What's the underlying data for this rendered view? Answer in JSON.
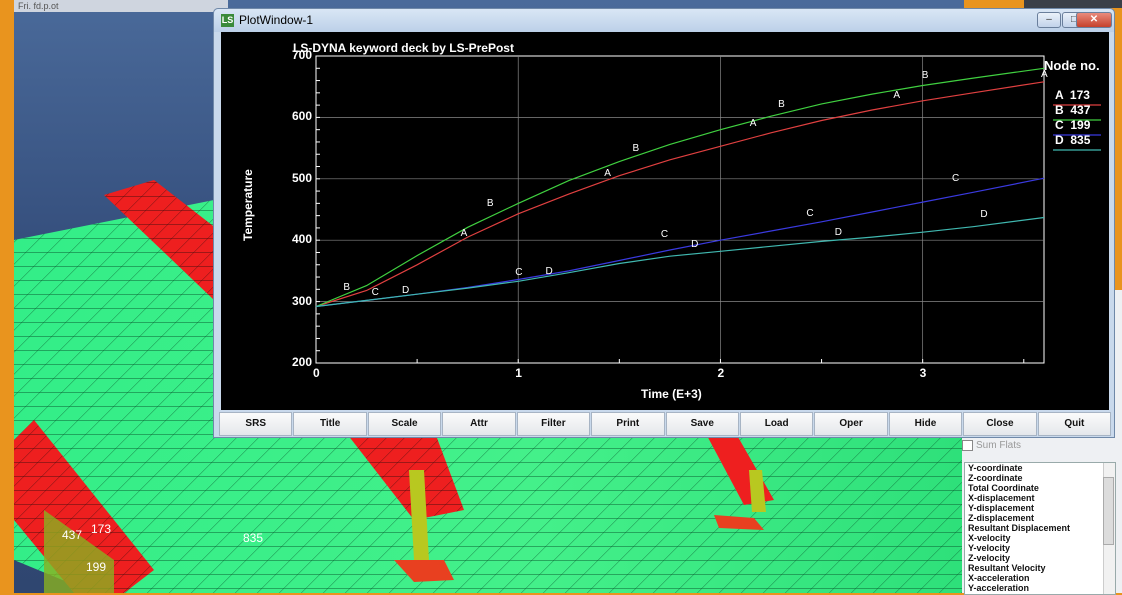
{
  "background_app": {
    "titlebar_text": "Fri. fd.p.ot",
    "node_labels": [
      "437",
      "173",
      "199",
      "835"
    ],
    "panel": {
      "sum_flats_label": "Sum Flats",
      "list_items": [
        "Y-coordinate",
        "Z-coordinate",
        "Total Coordinate",
        "X-displacement",
        "Y-displacement",
        "Z-displacement",
        "Resultant Displacement",
        "X-velocity",
        "Y-velocity",
        "Z-velocity",
        "Resultant Velocity",
        "X-acceleration",
        "Y-acceleration"
      ]
    }
  },
  "plot_window": {
    "title": "PlotWindow-1",
    "plot_title": "LS-DYNA keyword deck by LS-PrePost",
    "legend_title": "Node no.",
    "legend": [
      {
        "marker": "A",
        "node": "173",
        "color": "#e04040"
      },
      {
        "marker": "B",
        "node": "437",
        "color": "#40d040"
      },
      {
        "marker": "C",
        "node": "199",
        "color": "#3a3ae0"
      },
      {
        "marker": "D",
        "node": "835",
        "color": "#40b8b0"
      }
    ],
    "toolbar": [
      "SRS",
      "Title",
      "Scale",
      "Attr",
      "Filter",
      "Print",
      "Save",
      "Load",
      "Oper",
      "Hide",
      "Close",
      "Quit"
    ]
  },
  "chart_data": {
    "type": "line",
    "title": "LS-DYNA keyword deck by LS-PrePost",
    "xlabel": "Time (E+3)",
    "ylabel": "Temperature",
    "xlim": [
      0,
      3.6
    ],
    "ylim": [
      200,
      700
    ],
    "x_ticks": [
      "0",
      "1",
      "2",
      "3"
    ],
    "y_ticks": [
      "200",
      "300",
      "400",
      "500",
      "600",
      "700"
    ],
    "grid": true,
    "legend_placement": "right",
    "series": [
      {
        "name": "A 173",
        "marker": "A",
        "color": "#e04040",
        "x": [
          0,
          0.25,
          0.5,
          0.75,
          1.0,
          1.25,
          1.5,
          1.75,
          2.0,
          2.25,
          2.5,
          2.75,
          3.0,
          3.25,
          3.6
        ],
        "y": [
          292,
          318,
          360,
          405,
          443,
          475,
          505,
          531,
          553,
          575,
          595,
          612,
          627,
          640,
          658
        ]
      },
      {
        "name": "B 437",
        "marker": "B",
        "color": "#40d040",
        "x": [
          0,
          0.25,
          0.5,
          0.75,
          1.0,
          1.25,
          1.5,
          1.75,
          2.0,
          2.25,
          2.5,
          2.75,
          3.0,
          3.25,
          3.6
        ],
        "y": [
          292,
          326,
          375,
          421,
          460,
          497,
          528,
          556,
          580,
          602,
          622,
          638,
          652,
          664,
          680
        ]
      },
      {
        "name": "C 199",
        "marker": "C",
        "color": "#3a3ae0",
        "x": [
          0,
          0.25,
          0.5,
          0.75,
          1.0,
          1.25,
          1.5,
          1.75,
          2.0,
          2.25,
          2.5,
          2.75,
          3.0,
          3.25,
          3.6
        ],
        "y": [
          292,
          302,
          312,
          323,
          336,
          350,
          367,
          384,
          400,
          415,
          430,
          446,
          462,
          478,
          501
        ]
      },
      {
        "name": "D 835",
        "marker": "D",
        "color": "#40b8b0",
        "x": [
          0,
          0.25,
          0.5,
          0.75,
          1.0,
          1.25,
          1.5,
          1.75,
          2.0,
          2.25,
          2.5,
          2.75,
          3.0,
          3.25,
          3.6
        ],
        "y": [
          292,
          302,
          312,
          322,
          333,
          347,
          362,
          374,
          382,
          390,
          398,
          405,
          413,
          422,
          437
        ]
      }
    ],
    "marker_positions": [
      {
        "label": "A",
        "x": 0.73,
        "y": 400
      },
      {
        "label": "A",
        "x": 1.44,
        "y": 498
      },
      {
        "label": "A",
        "x": 2.16,
        "y": 580
      },
      {
        "label": "A",
        "x": 2.87,
        "y": 625
      },
      {
        "label": "A",
        "x": 3.6,
        "y": 660
      },
      {
        "label": "B",
        "x": 0.15,
        "y": 312
      },
      {
        "label": "B",
        "x": 0.86,
        "y": 450
      },
      {
        "label": "B",
        "x": 1.58,
        "y": 538
      },
      {
        "label": "B",
        "x": 2.3,
        "y": 610
      },
      {
        "label": "B",
        "x": 3.01,
        "y": 657
      },
      {
        "label": "C",
        "x": 0.29,
        "y": 305
      },
      {
        "label": "C",
        "x": 1.0,
        "y": 337
      },
      {
        "label": "C",
        "x": 1.72,
        "y": 398
      },
      {
        "label": "C",
        "x": 2.44,
        "y": 433
      },
      {
        "label": "C",
        "x": 3.16,
        "y": 490
      },
      {
        "label": "D",
        "x": 0.44,
        "y": 307
      },
      {
        "label": "D",
        "x": 1.15,
        "y": 338
      },
      {
        "label": "D",
        "x": 1.87,
        "y": 383
      },
      {
        "label": "D",
        "x": 2.58,
        "y": 402
      },
      {
        "label": "D",
        "x": 3.3,
        "y": 431
      }
    ]
  }
}
